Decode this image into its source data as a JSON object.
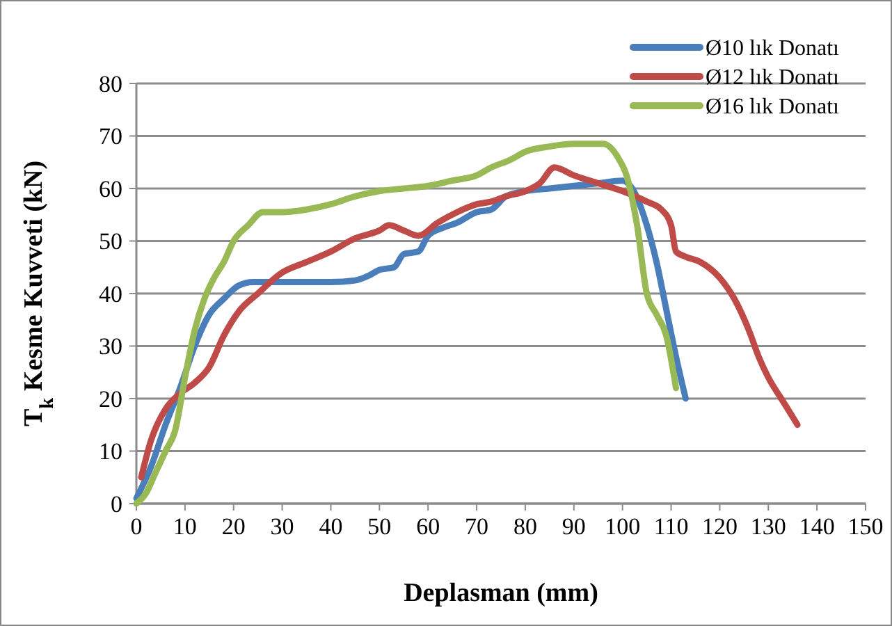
{
  "chart_data": {
    "type": "line",
    "xlabel": "Deplasman (mm)",
    "ylabel": "T$_{k}$ Kesme Kuvveti (kN)",
    "xlim": [
      0,
      150
    ],
    "xticks": [
      0,
      10,
      20,
      30,
      40,
      50,
      60,
      70,
      80,
      90,
      100,
      110,
      120,
      130,
      140,
      150
    ],
    "ylim": [
      0,
      80
    ],
    "yticks": [
      0,
      10,
      20,
      30,
      40,
      50,
      60,
      70,
      80
    ],
    "grid": "y",
    "legend": "top right",
    "line_style": "solid",
    "series": [
      {
        "name": "Ø10 lık Donatı",
        "color": "#4a7ebb",
        "x": [
          0,
          3,
          6,
          9,
          12,
          15,
          18,
          21,
          24,
          30,
          40,
          45,
          48,
          50,
          53,
          55,
          58,
          60,
          63,
          66,
          70,
          73,
          76,
          80,
          85,
          90,
          95,
          100,
          102,
          105,
          107,
          109,
          111,
          113
        ],
        "values": [
          1,
          7,
          15,
          22,
          30,
          36,
          39,
          41.5,
          42.2,
          42.2,
          42.2,
          42.5,
          43.5,
          44.5,
          45,
          47.5,
          48,
          51,
          52.5,
          53.5,
          55.5,
          56,
          58.5,
          59.5,
          60,
          60.5,
          61,
          61.5,
          60,
          53,
          46,
          37,
          28,
          20
        ]
      },
      {
        "name": "Ø12 lık Donatı",
        "color": "#be4b48",
        "x": [
          1,
          3,
          6,
          9,
          12,
          15,
          18,
          21,
          25,
          30,
          35,
          40,
          45,
          50,
          52,
          55,
          58,
          62,
          66,
          70,
          73,
          76,
          80,
          83,
          86,
          90,
          95,
          100,
          105,
          108,
          110,
          111,
          113,
          116,
          120,
          123,
          126,
          128,
          130,
          133,
          136
        ],
        "values": [
          5,
          12,
          18,
          21,
          23,
          26,
          32,
          36.5,
          40,
          44,
          46,
          48,
          50.5,
          52,
          53,
          52,
          51,
          53.5,
          55.5,
          57,
          57.5,
          58.5,
          59.5,
          61,
          64,
          62.5,
          61,
          59.5,
          57.5,
          56,
          53,
          48,
          47,
          46,
          43,
          39,
          33,
          28,
          24,
          19.5,
          15
        ]
      },
      {
        "name": "Ø16 lık Donatı",
        "color": "#98b954",
        "x": [
          0,
          2,
          4,
          6,
          8,
          10,
          12,
          14,
          16,
          18,
          20,
          23,
          26,
          30,
          35,
          40,
          45,
          50,
          55,
          60,
          65,
          70,
          73,
          77,
          80,
          85,
          90,
          96,
          99,
          101,
          103,
          105,
          107,
          109,
          111
        ],
        "values": [
          0,
          2,
          6,
          10,
          14,
          24,
          33,
          39,
          43,
          46,
          50,
          53,
          55.5,
          55.5,
          56,
          57,
          58.5,
          59.5,
          60,
          60.5,
          61.5,
          62.5,
          64,
          65.5,
          67,
          68,
          68.5,
          68.5,
          66,
          62,
          53,
          40,
          36,
          32,
          22
        ]
      }
    ]
  }
}
